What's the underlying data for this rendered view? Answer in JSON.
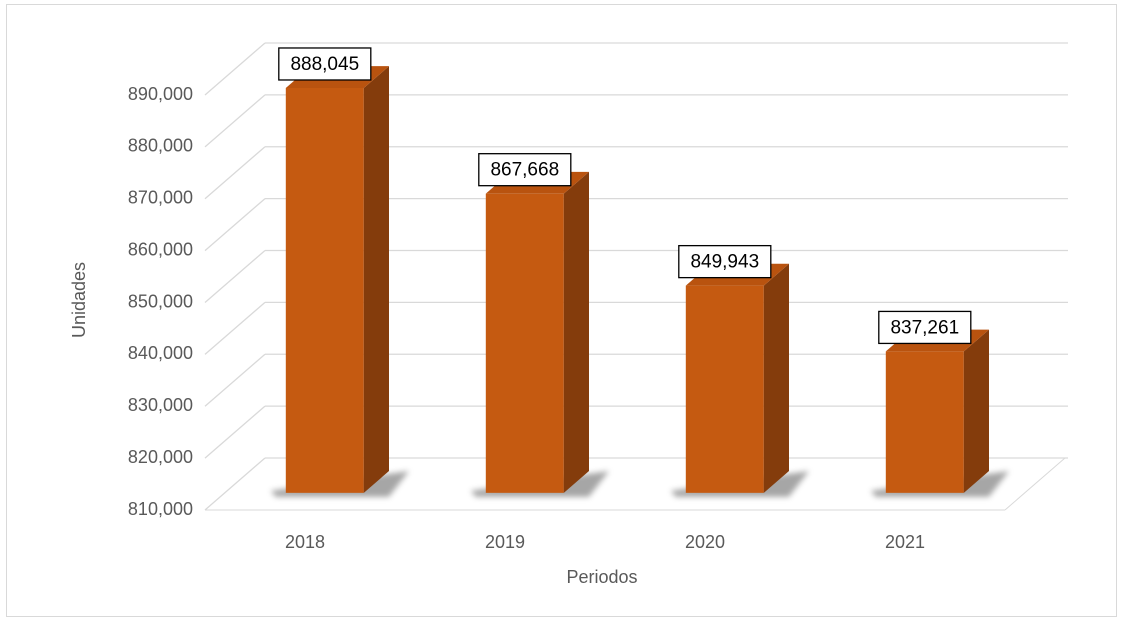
{
  "chart_data": {
    "type": "bar3d",
    "x_label": "Periodos",
    "y_label": "Unidades",
    "categories": [
      "2018",
      "2019",
      "2020",
      "2021"
    ],
    "values": [
      888045,
      867668,
      849943,
      837261
    ],
    "value_labels": [
      "888,045",
      "867,668",
      "849,943",
      "837,261"
    ],
    "color": "#c55a11",
    "side_color": "#843c0c",
    "top_color": "#b9530f",
    "ylim": [
      810000,
      890000
    ],
    "yticks": [
      {
        "value": 810000,
        "label": "810,000"
      },
      {
        "value": 820000,
        "label": "820,000"
      },
      {
        "value": 830000,
        "label": "830,000"
      },
      {
        "value": 840000,
        "label": "840,000"
      },
      {
        "value": 850000,
        "label": "850,000"
      },
      {
        "value": 860000,
        "label": "860,000"
      },
      {
        "value": 870000,
        "label": "870,000"
      },
      {
        "value": 880000,
        "label": "880,000"
      },
      {
        "value": 890000,
        "label": "890,000"
      }
    ],
    "grid": true
  }
}
